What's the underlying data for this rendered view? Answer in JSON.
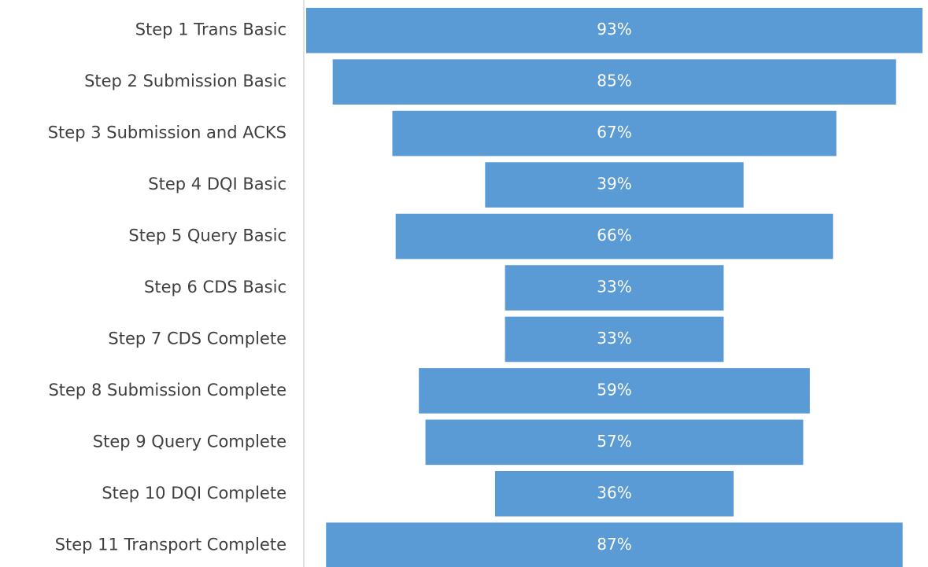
{
  "chart_data": {
    "type": "funnel",
    "categories": [
      "Step 1 Trans Basic",
      "Step 2 Submission Basic",
      "Step 3 Submission and ACKS",
      "Step 4 DQI Basic",
      "Step 5 Query Basic",
      "Step 6 CDS Basic",
      "Step 7 CDS Complete",
      "Step 8 Submission Complete",
      "Step 9 Query Complete",
      "Step 10 DQI Complete",
      "Step 11 Transport Complete"
    ],
    "values": [
      93,
      85,
      67,
      39,
      66,
      33,
      33,
      59,
      57,
      36,
      87
    ],
    "value_labels": [
      "93%",
      "85%",
      "67%",
      "39%",
      "66%",
      "33%",
      "33%",
      "59%",
      "57%",
      "36%",
      "87%"
    ],
    "color": "#5b9bd5"
  }
}
